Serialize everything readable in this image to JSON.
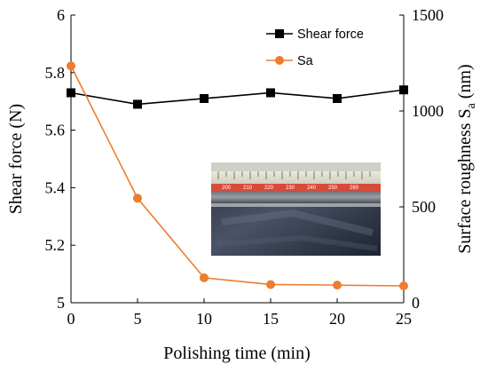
{
  "chart_data": {
    "type": "line",
    "x": [
      0,
      5,
      10,
      15,
      20,
      25
    ],
    "xlabel": "Polishing time (min)",
    "ylabel_left": "Shear force (N)",
    "ylabel_right": "Surface roughness S",
    "ylabel_right_sub": "a",
    "ylabel_right_unit": " (nm)",
    "xlim": [
      0,
      25
    ],
    "xticks": [
      "0",
      "5",
      "10",
      "15",
      "20",
      "25"
    ],
    "ylim_left": [
      5,
      6
    ],
    "yticks_left": [
      "5",
      "5.2",
      "5.4",
      "5.6",
      "5.8",
      "6"
    ],
    "ylim_right": [
      0,
      1500
    ],
    "yticks_right": [
      "0",
      "500",
      "1000",
      "1500"
    ],
    "grid": false,
    "legend_position": "top-right",
    "series": [
      {
        "name": "Shear force",
        "axis": "left",
        "marker": "square",
        "color": "#000000",
        "values": [
          5.73,
          5.69,
          5.71,
          5.73,
          5.71,
          5.74
        ]
      },
      {
        "name": "Sa",
        "axis": "right",
        "marker": "circle",
        "color": "#ED7D31",
        "values": [
          1235,
          545,
          130,
          95,
          92,
          88
        ]
      }
    ]
  }
}
